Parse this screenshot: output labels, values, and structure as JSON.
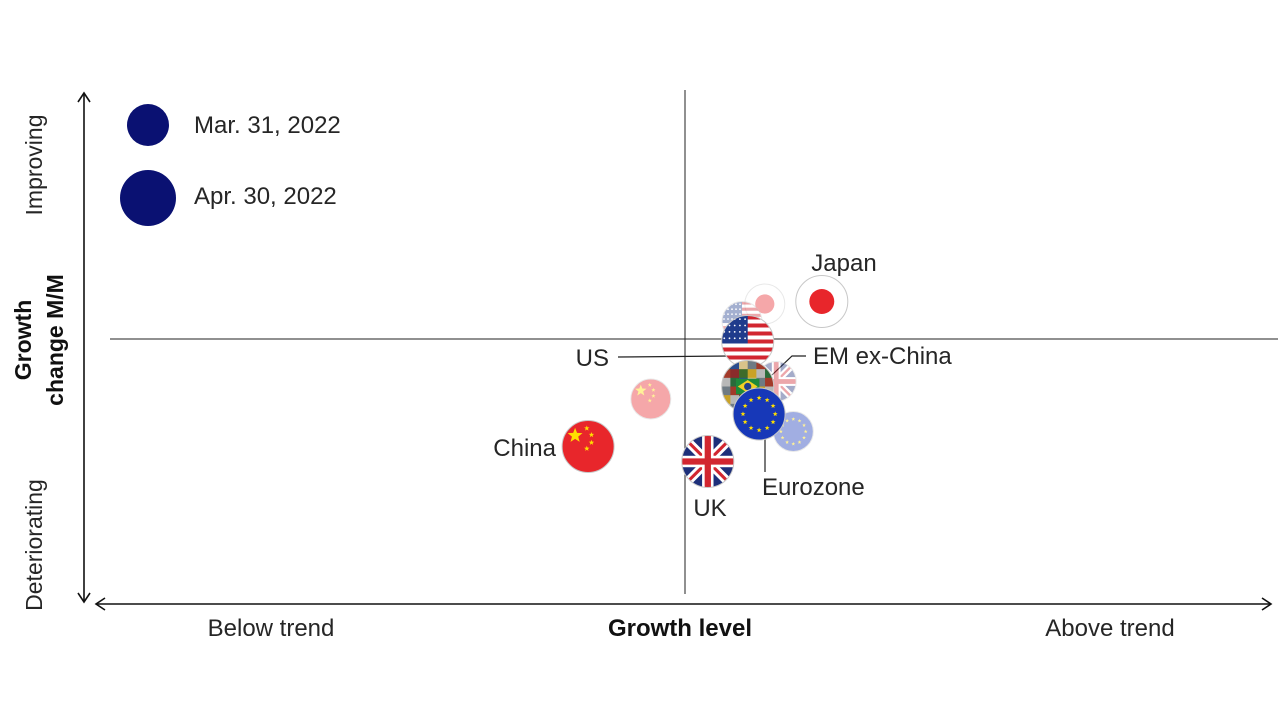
{
  "chart_data": {
    "type": "scatter",
    "title": "",
    "xlabel": "Growth level",
    "ylabel_line1": "Growth",
    "ylabel_line2": "change M/M",
    "x_low_label": "Below trend",
    "x_high_label": "Above trend",
    "y_high_label": "Improving",
    "y_low_label": "Deteriorating",
    "xlim": [
      -1,
      1
    ],
    "ylim": [
      -1,
      1
    ],
    "grid": false,
    "legend_position": "top-left",
    "legend": [
      {
        "label": "Mar. 31, 2022",
        "size": "small",
        "color": "#0a1172"
      },
      {
        "label": "Apr. 30, 2022",
        "size": "large",
        "color": "#0a1172"
      }
    ],
    "series": [
      {
        "name": "Japan",
        "flag": "japan",
        "mar": [
          0.14,
          0.14
        ],
        "apr": [
          0.24,
          0.15
        ]
      },
      {
        "name": "US",
        "flag": "usa",
        "mar": [
          0.1,
          0.07
        ],
        "apr": [
          0.11,
          -0.01
        ]
      },
      {
        "name": "EM ex-China",
        "flag": "em",
        "mar": [
          0.11,
          -0.02
        ],
        "apr": [
          0.11,
          -0.19
        ]
      },
      {
        "name": "Eurozone",
        "flag": "eu",
        "mar": [
          0.19,
          -0.37
        ],
        "apr": [
          0.13,
          -0.3
        ]
      },
      {
        "name": "China",
        "flag": "china",
        "mar": [
          -0.06,
          -0.24
        ],
        "apr": [
          -0.17,
          -0.43
        ]
      },
      {
        "name": "UK",
        "flag": "uk",
        "mar": [
          0.16,
          -0.17
        ],
        "apr": [
          0.04,
          -0.49
        ]
      }
    ],
    "point_labels": [
      "Japan",
      "US",
      "EM ex-China",
      "Eurozone",
      "China",
      "UK"
    ]
  },
  "colors": {
    "legend_dot": "#0a1172",
    "axis": "#111111",
    "japan_red": "#e8262b",
    "china_red": "#e8262b",
    "china_yellow": "#ffde00",
    "usa_red": "#d22630",
    "usa_blue": "#1f3b8c",
    "eu_blue": "#1738b8",
    "eu_star": "#ffde00",
    "uk_blue": "#1d2f7a",
    "uk_red": "#d22630"
  },
  "icons": [
    "flag-japan-icon",
    "flag-usa-icon",
    "flag-em-icon",
    "flag-eu-icon",
    "flag-china-icon",
    "flag-uk-icon"
  ]
}
